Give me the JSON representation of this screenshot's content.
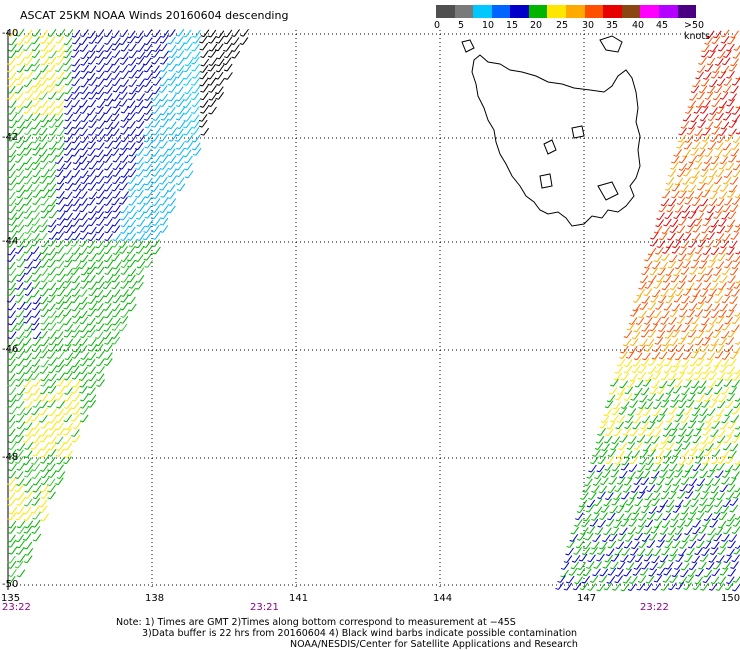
{
  "title": "ASCAT 25KM NOAA Winds 20160604 descending",
  "legend": {
    "labels": [
      "0",
      "5",
      "10",
      "15",
      "20",
      "25",
      "30",
      "35",
      "40",
      "45",
      ">50 knots"
    ],
    "colors": [
      "#505050",
      "#7a7a7a",
      "#00c8ff",
      "#0064ff",
      "#0000c8",
      "#00b400",
      "#ffe600",
      "#ffaa00",
      "#ff5000",
      "#e60000",
      "#8b4513",
      "#ff00ff",
      "#b400ff",
      "#4b0082"
    ]
  },
  "x_ticks": [
    "135",
    "138",
    "141",
    "144",
    "147",
    "150"
  ],
  "y_ticks": [
    "-40",
    "-42",
    "-44",
    "-46",
    "-48",
    "-50"
  ],
  "times": [
    "23:22",
    "23:21",
    "23:22"
  ],
  "notes": [
    "Note: 1) Times are GMT 2)Times along bottom correspond to measurement at −45S",
    "3)Data buffer is 22 hrs from 20160604 4) Black wind barbs indicate possible contamination",
    "NOAA/NESDIS/Center for Satellite Applications and Research"
  ],
  "colors": {
    "grid": "#000000",
    "coast": "#000000",
    "time": "#8b008b"
  }
}
